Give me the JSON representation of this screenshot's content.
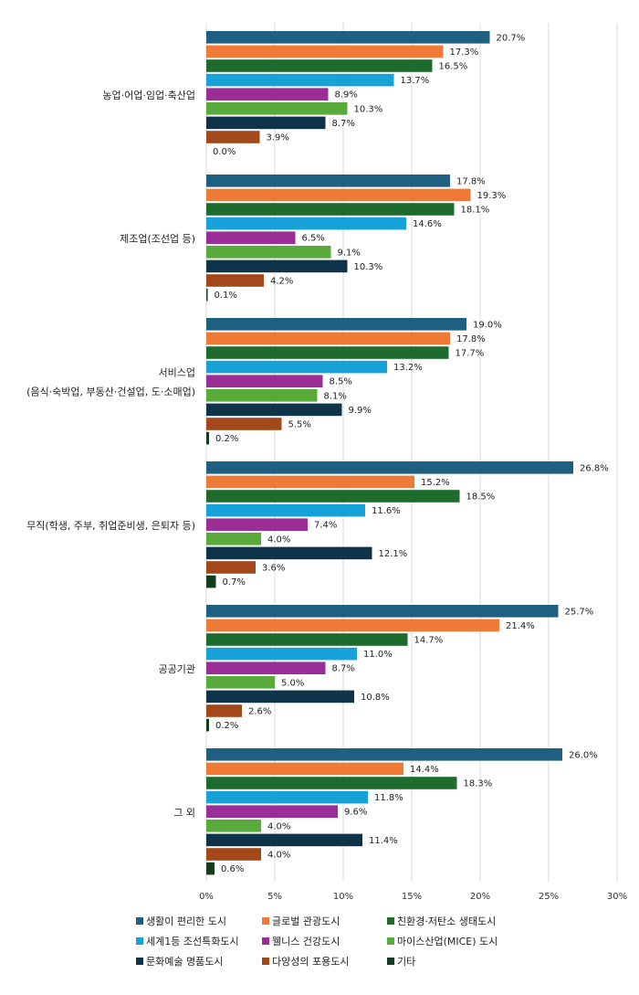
{
  "chart_data": {
    "type": "bar",
    "orientation": "horizontal",
    "title": "",
    "xlabel": "",
    "ylabel": "",
    "xlim": [
      0,
      30
    ],
    "ticks": [
      0,
      5,
      10,
      15,
      20,
      25,
      30
    ],
    "tick_labels": [
      "0%",
      "5%",
      "10%",
      "15%",
      "20%",
      "25%",
      "30%"
    ],
    "grid": true,
    "legend_position": "bottom",
    "categories": [
      {
        "lines": [
          "농업·어업·임업·축산업"
        ]
      },
      {
        "lines": [
          "제조업(조선업 등)"
        ]
      },
      {
        "lines": [
          "서비스업",
          "(음식·숙박업, 부동산·건설업, 도·소매업)"
        ]
      },
      {
        "lines": [
          "무직(학생, 주부, 취업준비생, 은퇴자 등)"
        ]
      },
      {
        "lines": [
          "공공기관"
        ]
      },
      {
        "lines": [
          "그 외"
        ]
      }
    ],
    "series": [
      {
        "name": "생활이 편리한 도시",
        "color": "#1f5f82",
        "values": [
          20.7,
          17.8,
          19.0,
          26.8,
          25.7,
          26.0
        ],
        "labels": [
          "20.7%",
          "17.8%",
          "19.0%",
          "26.8%",
          "25.7%",
          "26.0%"
        ]
      },
      {
        "name": "글로벌 관광도시",
        "color": "#ee7a35",
        "values": [
          17.3,
          19.3,
          17.8,
          15.2,
          21.4,
          14.4
        ],
        "labels": [
          "17.3%",
          "19.3%",
          "17.8%",
          "15.2%",
          "21.4%",
          "14.4%"
        ]
      },
      {
        "name": "친환경·저탄소 생태도시",
        "color": "#1d6b2d",
        "values": [
          16.5,
          18.1,
          17.7,
          18.5,
          14.7,
          18.3
        ],
        "labels": [
          "16.5%",
          "18.1%",
          "17.7%",
          "18.5%",
          "14.7%",
          "18.3%"
        ]
      },
      {
        "name": "세계1등 조선특화도시",
        "color": "#17a1d9",
        "values": [
          13.7,
          14.6,
          13.2,
          11.6,
          11.0,
          11.8
        ],
        "labels": [
          "13.7%",
          "14.6%",
          "13.2%",
          "11.6%",
          "11.0%",
          "11.8%"
        ]
      },
      {
        "name": "웰니스 건강도시",
        "color": "#9b2d96",
        "values": [
          8.9,
          6.5,
          8.5,
          7.4,
          8.7,
          9.6
        ],
        "labels": [
          "8.9%",
          "6.5%",
          "8.5%",
          "7.4%",
          "8.7%",
          "9.6%"
        ]
      },
      {
        "name": "마이스산업(MICE) 도시",
        "color": "#58ab3a",
        "values": [
          10.3,
          9.1,
          8.1,
          4.0,
          5.0,
          4.0
        ],
        "labels": [
          "10.3%",
          "9.1%",
          "8.1%",
          "4.0%",
          "5.0%",
          "4.0%"
        ]
      },
      {
        "name": "문화예술 명품도시",
        "color": "#0f3449",
        "values": [
          8.7,
          10.3,
          9.9,
          12.1,
          10.8,
          11.4
        ],
        "labels": [
          "8.7%",
          "10.3%",
          "9.9%",
          "12.1%",
          "10.8%",
          "11.4%"
        ]
      },
      {
        "name": "다양성의 포용도시",
        "color": "#a3481b",
        "values": [
          3.9,
          4.2,
          5.5,
          3.6,
          2.6,
          4.0
        ],
        "labels": [
          "3.9%",
          "4.2%",
          "5.5%",
          "3.6%",
          "2.6%",
          "4.0%"
        ]
      },
      {
        "name": "기타",
        "color": "#133d1c",
        "values": [
          0.0,
          0.1,
          0.2,
          0.7,
          0.2,
          0.6
        ],
        "labels": [
          "0.0%",
          "0.1%",
          "0.2%",
          "0.7%",
          "0.2%",
          "0.6%"
        ]
      }
    ]
  }
}
